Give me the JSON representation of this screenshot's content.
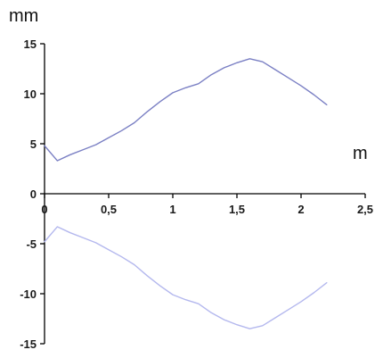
{
  "chart_data": {
    "type": "line",
    "title": "",
    "ylabel": "mm",
    "xlabel": "m",
    "xlim": [
      0,
      2.5
    ],
    "ylim": [
      -15,
      15
    ],
    "x_ticks": [
      {
        "value": 0,
        "label": "0"
      },
      {
        "value": 0.5,
        "label": "0,5"
      },
      {
        "value": 1,
        "label": "1"
      },
      {
        "value": 1.5,
        "label": "1,5"
      },
      {
        "value": 2,
        "label": "2"
      },
      {
        "value": 2.5,
        "label": "2,5"
      }
    ],
    "y_ticks": [
      {
        "value": 15,
        "label": "15"
      },
      {
        "value": 10,
        "label": "10"
      },
      {
        "value": 5,
        "label": "5"
      },
      {
        "value": 0,
        "label": "0"
      },
      {
        "value": -5,
        "label": "-5"
      },
      {
        "value": -10,
        "label": "-10"
      },
      {
        "value": -15,
        "label": "-15"
      }
    ],
    "grid": false,
    "legend": "none",
    "series": [
      {
        "color": "#7b80c4",
        "points": [
          [
            0,
            4.8
          ],
          [
            0.1,
            3.3
          ],
          [
            0.2,
            3.9
          ],
          [
            0.3,
            4.4
          ],
          [
            0.4,
            4.9
          ],
          [
            0.5,
            5.6
          ],
          [
            0.6,
            6.3
          ],
          [
            0.7,
            7.1
          ],
          [
            0.8,
            8.2
          ],
          [
            0.9,
            9.2
          ],
          [
            1.0,
            10.1
          ],
          [
            1.1,
            10.6
          ],
          [
            1.2,
            11.0
          ],
          [
            1.3,
            11.9
          ],
          [
            1.4,
            12.6
          ],
          [
            1.5,
            13.1
          ],
          [
            1.6,
            13.5
          ],
          [
            1.7,
            13.2
          ],
          [
            1.8,
            12.4
          ],
          [
            1.9,
            11.6
          ],
          [
            2.0,
            10.8
          ],
          [
            2.1,
            9.9
          ],
          [
            2.2,
            8.9
          ]
        ]
      },
      {
        "color": "#b4b8ee",
        "points": [
          [
            0,
            -4.8
          ],
          [
            0.1,
            -3.3
          ],
          [
            0.2,
            -3.9
          ],
          [
            0.3,
            -4.4
          ],
          [
            0.4,
            -4.9
          ],
          [
            0.5,
            -5.6
          ],
          [
            0.6,
            -6.3
          ],
          [
            0.7,
            -7.1
          ],
          [
            0.8,
            -8.2
          ],
          [
            0.9,
            -9.2
          ],
          [
            1.0,
            -10.1
          ],
          [
            1.1,
            -10.6
          ],
          [
            1.2,
            -11.0
          ],
          [
            1.3,
            -11.9
          ],
          [
            1.4,
            -12.6
          ],
          [
            1.5,
            -13.1
          ],
          [
            1.6,
            -13.5
          ],
          [
            1.7,
            -13.2
          ],
          [
            1.8,
            -12.4
          ],
          [
            1.9,
            -11.6
          ],
          [
            2.0,
            -10.8
          ],
          [
            2.1,
            -9.9
          ],
          [
            2.2,
            -8.9
          ]
        ]
      }
    ]
  }
}
